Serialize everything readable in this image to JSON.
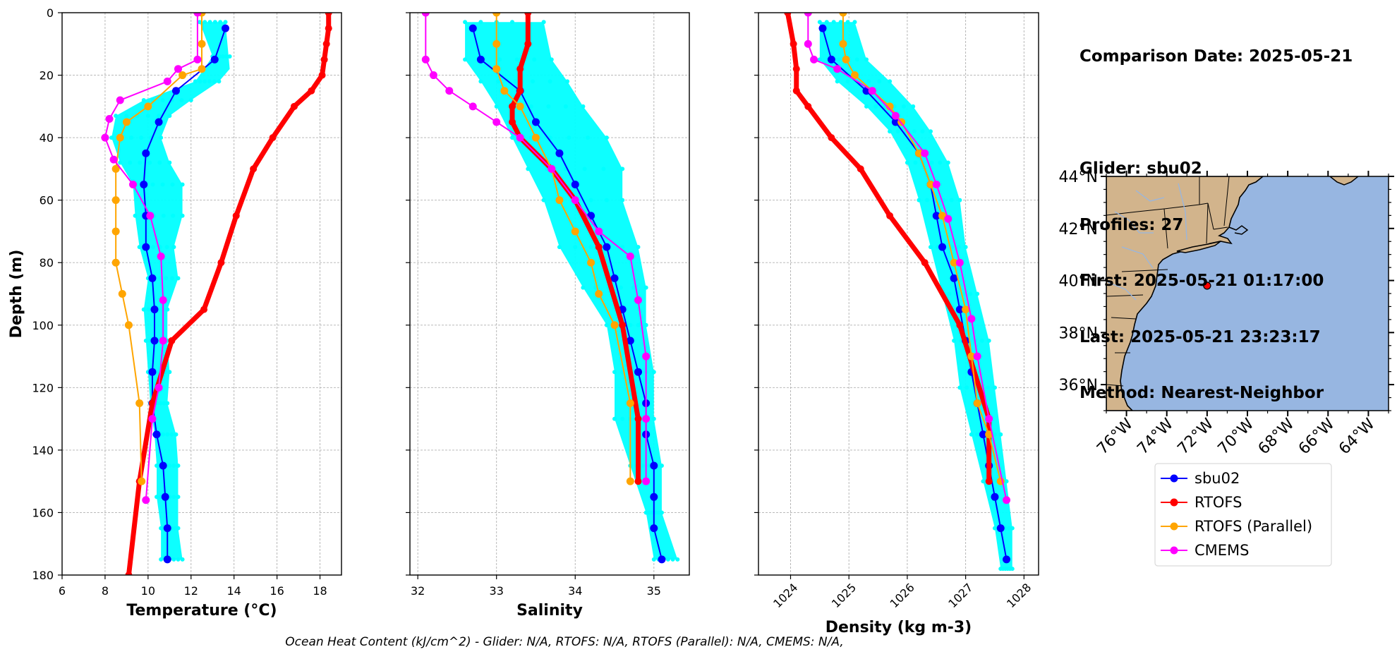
{
  "info": {
    "date_line": "Comparison Date: 2025-05-21",
    "glider_line": "Glider: sbu02",
    "profiles_line": "Profiles: 27",
    "first_line": "First: 2025-05-21 01:17:00",
    "last_line": "Last: 2025-05-21 23:23:17",
    "method_line": "Method: Nearest-Neighbor"
  },
  "footer": "Ocean Heat Content (kJ/cm^2) - Glider: N/A,  RTOFS: N/A,  RTOFS (Parallel): N/A,  CMEMS: N/A,",
  "colors": {
    "glider": "#0000ff",
    "glider_scatter": "#00ffff",
    "rtofs": "#ff0000",
    "rtofs_parallel": "#ffa500",
    "cmems": "#ff00ff",
    "land": "#d2b48c",
    "ocean": "#97b6e1",
    "grid": "#b0b0b0"
  },
  "legend": [
    "sbu02",
    "RTOFS",
    "RTOFS (Parallel)",
    "CMEMS"
  ],
  "map": {
    "lon_range": [
      -77,
      -63
    ],
    "lat_range": [
      35,
      44
    ],
    "lon_ticks": [
      "76°W",
      "74°W",
      "72°W",
      "70°W",
      "68°W",
      "66°W",
      "64°W"
    ],
    "lat_ticks": [
      "44°N",
      "42°N",
      "40°N",
      "38°N",
      "36°N"
    ],
    "glider_position": {
      "lon": -72.0,
      "lat": 39.8
    }
  },
  "chart_data": [
    {
      "type": "line",
      "xlabel": "Temperature (°C)",
      "ylabel": "Depth (m)",
      "xlim": [
        6,
        19
      ],
      "ylim": [
        180,
        0
      ],
      "xticks": [
        6,
        8,
        10,
        12,
        14,
        16,
        18
      ],
      "yticks": [
        0,
        20,
        40,
        60,
        80,
        100,
        120,
        140,
        160,
        180
      ],
      "grid": true,
      "scatter_band": [
        [
          12.4,
          3
        ],
        [
          13.6,
          3
        ],
        [
          13.0,
          14
        ],
        [
          13.8,
          18
        ],
        [
          12.2,
          22
        ],
        [
          13.3,
          22
        ],
        [
          9.8,
          28
        ],
        [
          12.0,
          28
        ],
        [
          8.5,
          33
        ],
        [
          11.0,
          33
        ],
        [
          8.3,
          40
        ],
        [
          10.6,
          40
        ],
        [
          8.7,
          48
        ],
        [
          11.0,
          48
        ],
        [
          9.3,
          55
        ],
        [
          11.6,
          55
        ],
        [
          9.4,
          65
        ],
        [
          11.6,
          65
        ],
        [
          9.6,
          75
        ],
        [
          11.2,
          75
        ],
        [
          10.0,
          85
        ],
        [
          11.4,
          85
        ],
        [
          9.8,
          95
        ],
        [
          10.9,
          95
        ],
        [
          9.9,
          105
        ],
        [
          10.9,
          105
        ],
        [
          10.0,
          115
        ],
        [
          11.0,
          115
        ],
        [
          10.1,
          125
        ],
        [
          10.9,
          125
        ],
        [
          10.3,
          135
        ],
        [
          11.3,
          135
        ],
        [
          10.4,
          145
        ],
        [
          11.4,
          145
        ],
        [
          10.4,
          155
        ],
        [
          11.4,
          155
        ],
        [
          10.6,
          165
        ],
        [
          11.4,
          165
        ],
        [
          10.6,
          175
        ],
        [
          11.6,
          175
        ]
      ],
      "series": [
        {
          "name": "sbu02",
          "color": "#0000ff",
          "x": [
            13.6,
            13.1,
            11.3,
            10.5,
            9.9,
            9.8,
            9.9,
            9.9,
            10.2,
            10.3,
            10.3,
            10.2,
            10.2,
            10.4,
            10.7,
            10.8,
            10.9,
            10.9
          ],
          "y": [
            5,
            15,
            25,
            35,
            45,
            55,
            65,
            75,
            85,
            95,
            105,
            115,
            125,
            135,
            145,
            155,
            165,
            175
          ]
        },
        {
          "name": "RTOFS",
          "color": "#ff0000",
          "x": [
            18.4,
            18.4,
            18.3,
            18.2,
            18.1,
            17.6,
            16.8,
            15.8,
            14.9,
            14.1,
            13.4,
            12.6,
            11.1,
            10.2,
            9.6,
            9.1
          ],
          "y": [
            0,
            5,
            10,
            15,
            20,
            25,
            30,
            40,
            50,
            65,
            80,
            95,
            105,
            125,
            150,
            180
          ]
        },
        {
          "name": "RTOFS (Parallel)",
          "color": "#ffa500",
          "x": [
            12.5,
            12.5,
            12.5,
            11.6,
            10.0,
            9.0,
            8.7,
            8.5,
            8.5,
            8.5,
            8.5,
            8.8,
            9.1,
            9.6,
            9.7
          ],
          "y": [
            0,
            10,
            18,
            20,
            30,
            35,
            40,
            50,
            60,
            70,
            80,
            90,
            100,
            125,
            150
          ]
        },
        {
          "name": "CMEMS",
          "color": "#ff00ff",
          "x": [
            12.3,
            12.3,
            11.4,
            10.9,
            8.7,
            8.2,
            8.0,
            8.4,
            9.3,
            10.1,
            10.6,
            10.7,
            10.7,
            10.5,
            10.2,
            9.9
          ],
          "y": [
            0,
            15,
            18,
            22,
            28,
            34,
            40,
            47,
            55,
            65,
            78,
            92,
            105,
            120,
            130,
            156
          ]
        }
      ]
    },
    {
      "type": "line",
      "xlabel": "Salinity",
      "xlim": [
        31.9,
        35.45
      ],
      "ylim": [
        180,
        0
      ],
      "xticks": [
        32,
        33,
        34,
        35
      ],
      "yticks": [
        0,
        20,
        40,
        60,
        80,
        100,
        120,
        140,
        160,
        180
      ],
      "grid": true,
      "scatter_band": [
        [
          32.6,
          3
        ],
        [
          33.6,
          3
        ],
        [
          32.6,
          15
        ],
        [
          33.7,
          15
        ],
        [
          32.8,
          22
        ],
        [
          33.9,
          22
        ],
        [
          33.0,
          30
        ],
        [
          34.1,
          30
        ],
        [
          33.2,
          40
        ],
        [
          34.4,
          40
        ],
        [
          33.4,
          50
        ],
        [
          34.6,
          50
        ],
        [
          33.6,
          60
        ],
        [
          34.6,
          60
        ],
        [
          33.8,
          75
        ],
        [
          34.8,
          75
        ],
        [
          34.1,
          88
        ],
        [
          34.9,
          88
        ],
        [
          34.4,
          100
        ],
        [
          34.9,
          100
        ],
        [
          34.5,
          115
        ],
        [
          35.0,
          115
        ],
        [
          34.5,
          130
        ],
        [
          35.0,
          130
        ],
        [
          34.7,
          145
        ],
        [
          35.1,
          145
        ],
        [
          34.9,
          160
        ],
        [
          35.1,
          160
        ],
        [
          35.0,
          175
        ],
        [
          35.3,
          175
        ]
      ],
      "series": [
        {
          "name": "sbu02",
          "color": "#0000ff",
          "x": [
            32.7,
            32.8,
            33.3,
            33.5,
            33.8,
            34.0,
            34.2,
            34.4,
            34.5,
            34.6,
            34.7,
            34.8,
            34.9,
            34.9,
            35.0,
            35.0,
            35.0,
            35.1
          ],
          "y": [
            5,
            15,
            25,
            35,
            45,
            55,
            65,
            75,
            85,
            95,
            105,
            115,
            125,
            135,
            145,
            155,
            165,
            175
          ]
        },
        {
          "name": "RTOFS",
          "color": "#ff0000",
          "x": [
            33.4,
            33.4,
            33.3,
            33.3,
            33.2,
            33.2,
            33.3,
            33.7,
            34.0,
            34.3,
            34.6,
            34.8,
            34.8
          ],
          "y": [
            0,
            10,
            18,
            25,
            30,
            35,
            40,
            50,
            60,
            75,
            100,
            130,
            150
          ]
        },
        {
          "name": "RTOFS (Parallel)",
          "color": "#ffa500",
          "x": [
            33.0,
            33.0,
            33.0,
            33.1,
            33.3,
            33.5,
            33.7,
            33.8,
            34.0,
            34.2,
            34.3,
            34.5,
            34.7,
            34.7
          ],
          "y": [
            0,
            10,
            18,
            25,
            30,
            40,
            50,
            60,
            70,
            80,
            90,
            100,
            125,
            150
          ]
        },
        {
          "name": "CMEMS",
          "color": "#ff00ff",
          "x": [
            32.1,
            32.1,
            32.2,
            32.4,
            32.7,
            33.0,
            33.3,
            33.7,
            34.0,
            34.3,
            34.7,
            34.8,
            34.9,
            34.9,
            34.9
          ],
          "y": [
            0,
            15,
            20,
            25,
            30,
            35,
            40,
            50,
            60,
            70,
            78,
            92,
            110,
            130,
            150
          ]
        }
      ]
    },
    {
      "type": "line",
      "xlabel": "Density (kg m-3)",
      "xlim": [
        1023.45,
        1028.25
      ],
      "ylim": [
        180,
        0
      ],
      "xticks": [
        1024,
        1025,
        1026,
        1027,
        1028
      ],
      "yticks": [
        0,
        20,
        40,
        60,
        80,
        100,
        120,
        140,
        160,
        180
      ],
      "grid": true,
      "scatter_band": [
        [
          1024.5,
          3
        ],
        [
          1025.1,
          3
        ],
        [
          1024.5,
          15
        ],
        [
          1025.3,
          15
        ],
        [
          1024.8,
          22
        ],
        [
          1025.7,
          22
        ],
        [
          1025.3,
          30
        ],
        [
          1026.1,
          30
        ],
        [
          1025.7,
          38
        ],
        [
          1026.4,
          38
        ],
        [
          1026.0,
          48
        ],
        [
          1026.7,
          48
        ],
        [
          1026.2,
          60
        ],
        [
          1026.9,
          60
        ],
        [
          1026.4,
          75
        ],
        [
          1027.0,
          75
        ],
        [
          1026.6,
          90
        ],
        [
          1027.2,
          90
        ],
        [
          1026.8,
          105
        ],
        [
          1027.4,
          105
        ],
        [
          1026.9,
          120
        ],
        [
          1027.5,
          120
        ],
        [
          1027.1,
          135
        ],
        [
          1027.6,
          135
        ],
        [
          1027.3,
          150
        ],
        [
          1027.7,
          150
        ],
        [
          1027.5,
          165
        ],
        [
          1027.8,
          165
        ],
        [
          1027.6,
          178
        ],
        [
          1027.8,
          178
        ]
      ],
      "series": [
        {
          "name": "sbu02",
          "color": "#0000ff",
          "x": [
            1024.55,
            1024.7,
            1025.3,
            1025.8,
            1026.2,
            1026.4,
            1026.5,
            1026.6,
            1026.8,
            1026.9,
            1027.0,
            1027.1,
            1027.2,
            1027.3,
            1027.4,
            1027.5,
            1027.6,
            1027.7
          ],
          "y": [
            5,
            15,
            25,
            35,
            45,
            55,
            65,
            75,
            85,
            95,
            105,
            115,
            125,
            135,
            145,
            155,
            165,
            175
          ]
        },
        {
          "name": "RTOFS",
          "color": "#ff0000",
          "x": [
            1023.95,
            1024.05,
            1024.1,
            1024.1,
            1024.3,
            1024.7,
            1025.2,
            1025.7,
            1026.3,
            1026.9,
            1027.4,
            1027.4
          ],
          "y": [
            0,
            10,
            18,
            25,
            30,
            40,
            50,
            65,
            80,
            100,
            130,
            150
          ]
        },
        {
          "name": "RTOFS (Parallel)",
          "color": "#ffa500",
          "x": [
            1024.9,
            1024.9,
            1024.95,
            1025.1,
            1025.4,
            1025.7,
            1025.9,
            1026.2,
            1026.4,
            1026.6,
            1026.8,
            1027.0,
            1027.1,
            1027.2,
            1027.4,
            1027.6
          ],
          "y": [
            0,
            10,
            15,
            20,
            25,
            30,
            35,
            45,
            55,
            65,
            80,
            95,
            110,
            125,
            135,
            150
          ]
        },
        {
          "name": "CMEMS",
          "color": "#ff00ff",
          "x": [
            1024.3,
            1024.3,
            1024.4,
            1024.8,
            1025.4,
            1025.8,
            1026.3,
            1026.5,
            1026.7,
            1026.9,
            1027.1,
            1027.2,
            1027.4,
            1027.7
          ],
          "y": [
            0,
            10,
            15,
            18,
            25,
            33,
            45,
            55,
            66,
            80,
            98,
            110,
            130,
            156
          ]
        }
      ]
    }
  ]
}
